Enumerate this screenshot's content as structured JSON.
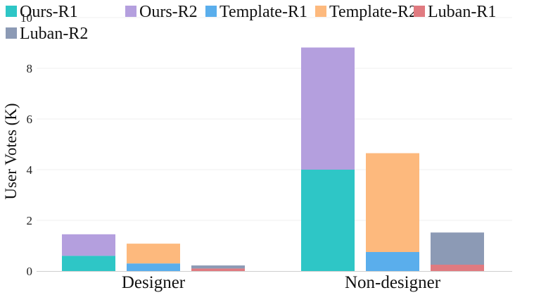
{
  "chart_data": {
    "type": "bar",
    "stacked": true,
    "categories": [
      "Designer",
      "Non-designer"
    ],
    "groups": [
      "Ours",
      "Template",
      "Luban"
    ],
    "series": [
      {
        "name": "Ours-R1",
        "group": "Ours",
        "color": "#2ec6c6",
        "values": [
          0.6,
          4.0
        ]
      },
      {
        "name": "Ours-R2",
        "group": "Ours",
        "color": "#b49fde",
        "values": [
          0.85,
          4.82
        ]
      },
      {
        "name": "Template-R1",
        "group": "Template",
        "color": "#5aaeec",
        "values": [
          0.3,
          0.75
        ]
      },
      {
        "name": "Template-R2",
        "group": "Template",
        "color": "#fdb97d",
        "values": [
          0.78,
          3.9
        ]
      },
      {
        "name": "Luban-R1",
        "group": "Luban",
        "color": "#e07a80",
        "values": [
          0.1,
          0.25
        ]
      },
      {
        "name": "Luban-R2",
        "group": "Luban",
        "color": "#8c9ab5",
        "values": [
          0.12,
          1.27
        ]
      }
    ],
    "title": "",
    "xlabel": "",
    "ylabel": "User Votes (K)",
    "ylim": [
      0,
      10
    ],
    "yticks": [
      0,
      2,
      4,
      6,
      8,
      10
    ],
    "grid": true,
    "legend_position": "top-left"
  }
}
